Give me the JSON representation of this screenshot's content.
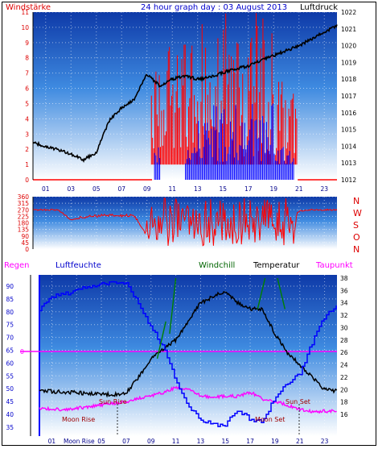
{
  "top": {
    "title": "24 hour graph day : 03 August 2013",
    "left_label": "Windstärke",
    "right_label": "Luftdruck",
    "left_ticks": [
      "0",
      "1",
      "2",
      "3",
      "4",
      "5",
      "6",
      "7",
      "8",
      "9",
      "10",
      "11"
    ],
    "right_ticks": [
      "1012",
      "1013",
      "1014",
      "1015",
      "1016",
      "1017",
      "1018",
      "1019",
      "1020",
      "1021",
      "1022"
    ],
    "colors": {
      "wind": "#ff0000",
      "gust": "#0000ff",
      "pressure": "#000000"
    }
  },
  "middle": {
    "left_ticks": [
      "0",
      "45",
      "90",
      "135",
      "180",
      "225",
      "270",
      "315",
      "360"
    ],
    "compass": [
      "N",
      "W",
      "S",
      "O",
      "N"
    ]
  },
  "bottom": {
    "labels": {
      "regen": "Regen",
      "humidity": "Luftfeuchte",
      "windchill": "Windchill",
      "temperature": "Temperatur",
      "dewpoint": "Taupunkt"
    },
    "humidity_ticks": [
      "35",
      "40",
      "45",
      "50",
      "55",
      "60",
      "65",
      "70",
      "75",
      "80",
      "85",
      "90"
    ],
    "rain_tick": "0",
    "temp_ticks": [
      "16",
      "18",
      "20",
      "22",
      "24",
      "26",
      "28",
      "30",
      "32",
      "34",
      "36",
      "38"
    ],
    "sun_rise": "Sun Rise",
    "sun_set": "Sun Set",
    "moon_rise": "Moon Rise",
    "moon_set": "Moon Set",
    "moon_rise_bottom": "Moon Rise",
    "colors": {
      "humidity": "#0000ff",
      "temperature": "#000000",
      "dewpoint": "#ff00ff",
      "windchill": "#008000",
      "rain": "#ff00ff"
    }
  },
  "hours": [
    "01",
    "03",
    "05",
    "07",
    "09",
    "11",
    "13",
    "15",
    "17",
    "19",
    "21",
    "23"
  ],
  "chart_data": [
    {
      "type": "line",
      "title": "24 hour graph day : 03 August 2013",
      "ylabel": "Windstärke",
      "y2label": "Luftdruck",
      "x": [
        0,
        1,
        2,
        3,
        4,
        5,
        6,
        7,
        8,
        9,
        10,
        11,
        12,
        13,
        14,
        15,
        16,
        17,
        18,
        19,
        20,
        21,
        22,
        23,
        24
      ],
      "series": [
        {
          "name": "Luftdruck",
          "axis": "right",
          "values": [
            1014.2,
            1014.0,
            1013.8,
            1013.5,
            1013.2,
            1013.6,
            1015.5,
            1016.3,
            1016.8,
            1018.3,
            1017.6,
            1018.0,
            1018.2,
            1018.0,
            1018.1,
            1018.4,
            1018.6,
            1018.8,
            1019.1,
            1019.4,
            1019.7,
            1020.0,
            1020.4,
            1020.8,
            1021.2
          ]
        }
      ],
      "ylim": [
        0,
        11
      ],
      "y2lim": [
        1012,
        1022
      ]
    },
    {
      "type": "line",
      "ylabel": "Windrichtung",
      "ylim": [
        0,
        360
      ],
      "x": [
        0,
        1,
        2,
        3,
        4,
        5,
        6,
        7,
        8,
        9,
        10,
        11,
        12,
        13,
        14,
        15,
        16,
        17,
        18,
        19,
        20,
        21,
        22,
        23,
        24
      ],
      "series": [
        {
          "name": "Windrichtung",
          "values": [
            270,
            270,
            270,
            200,
            220,
            230,
            230,
            230,
            230,
            90,
            180,
            150,
            200,
            180,
            180,
            190,
            200,
            220,
            200,
            230,
            180,
            260,
            270,
            270,
            270
          ]
        }
      ]
    },
    {
      "type": "line",
      "x": [
        0,
        1,
        2,
        3,
        4,
        5,
        6,
        7,
        8,
        9,
        10,
        11,
        12,
        13,
        14,
        15,
        16,
        17,
        18,
        19,
        20,
        21,
        22,
        23,
        24
      ],
      "series": [
        {
          "name": "Luftfeuchte",
          "axis": "left",
          "values": [
            81,
            86,
            87,
            88,
            90,
            91,
            91,
            91,
            83,
            74,
            66,
            53,
            43,
            38,
            36,
            36,
            42,
            38,
            37,
            47,
            52,
            56,
            68,
            78,
            82
          ]
        },
        {
          "name": "Temperatur",
          "axis": "right",
          "values": [
            20,
            19.7,
            19.6,
            19.5,
            19.3,
            19.2,
            19.2,
            19.5,
            22,
            25,
            26.5,
            28,
            31,
            34,
            35,
            36,
            34,
            33,
            33,
            29,
            26,
            24,
            22,
            20,
            19.8
          ]
        },
        {
          "name": "Taupunkt",
          "axis": "right",
          "values": [
            17,
            16.8,
            16.8,
            17,
            17.2,
            17.5,
            17.8,
            18,
            18.6,
            19,
            19.5,
            20.3,
            20,
            19,
            18.7,
            19,
            18.9,
            19.6,
            18.5,
            18.1,
            17.5,
            16.8,
            16.4,
            16.5,
            16.5
          ]
        }
      ],
      "y1lim": [
        35,
        92
      ],
      "y2lim": [
        15,
        38
      ]
    }
  ]
}
